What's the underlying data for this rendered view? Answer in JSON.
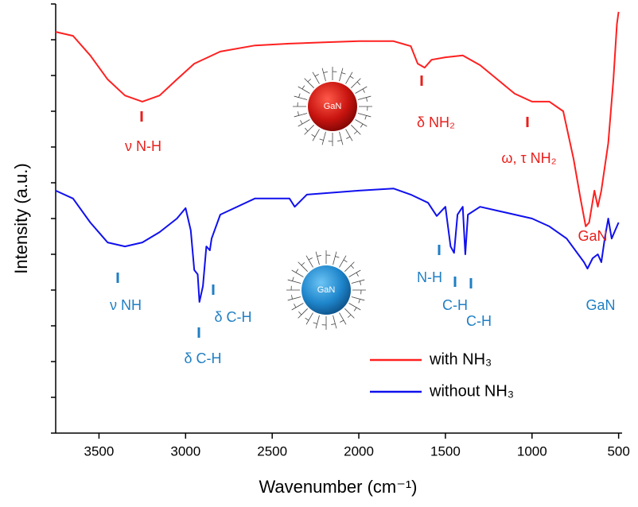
{
  "chart_data": {
    "type": "line",
    "xlabel": "Wavenumber (cm⁻¹)",
    "ylabel": "Intensity (a.u.)",
    "xlim": [
      3750,
      480
    ],
    "xticks": [
      3500,
      3000,
      2500,
      2000,
      1500,
      1000,
      500
    ],
    "ylim": [
      0,
      12
    ],
    "yticks": [
      0,
      1,
      2,
      3,
      4,
      5,
      6,
      7,
      8,
      9,
      10,
      11,
      12
    ],
    "legend": "lower right",
    "series": [
      {
        "name": "with NH₃",
        "color": "#ff2020",
        "x": [
          3750,
          3650,
          3550,
          3450,
          3350,
          3250,
          3150,
          3050,
          2950,
          2800,
          2600,
          2400,
          2200,
          2000,
          1800,
          1700,
          1660,
          1620,
          1580,
          1500,
          1400,
          1300,
          1200,
          1100,
          1000,
          900,
          820,
          760,
          720,
          690,
          670,
          640,
          620,
          600,
          560,
          530,
          510,
          500
        ],
        "values": [
          11.22,
          11.11,
          10.56,
          9.89,
          9.44,
          9.27,
          9.44,
          9.89,
          10.33,
          10.67,
          10.84,
          10.89,
          10.93,
          10.96,
          10.96,
          10.82,
          10.33,
          10.22,
          10.44,
          10.51,
          10.56,
          10.29,
          9.89,
          9.49,
          9.27,
          9.27,
          9.0,
          7.67,
          6.56,
          5.78,
          5.89,
          6.78,
          6.33,
          6.78,
          8.11,
          9.89,
          11.44,
          11.78
        ]
      },
      {
        "name": "without NH₃",
        "color": "#1010ee",
        "x": [
          3750,
          3650,
          3550,
          3450,
          3350,
          3250,
          3150,
          3050,
          3000,
          2970,
          2950,
          2930,
          2920,
          2900,
          2880,
          2860,
          2850,
          2800,
          2600,
          2400,
          2370,
          2300,
          2000,
          1800,
          1700,
          1600,
          1550,
          1500,
          1470,
          1450,
          1430,
          1400,
          1385,
          1370,
          1300,
          1200,
          1000,
          900,
          800,
          700,
          680,
          650,
          620,
          600,
          580,
          560,
          540,
          520,
          500
        ],
        "values": [
          6.78,
          6.56,
          5.89,
          5.33,
          5.22,
          5.33,
          5.62,
          6.0,
          6.29,
          5.67,
          4.56,
          4.44,
          3.67,
          4.11,
          5.22,
          5.11,
          5.44,
          6.11,
          6.56,
          6.56,
          6.33,
          6.67,
          6.78,
          6.84,
          6.67,
          6.44,
          6.07,
          6.33,
          5.22,
          5.04,
          6.11,
          6.33,
          5.0,
          6.11,
          6.33,
          6.22,
          6.0,
          5.78,
          5.44,
          4.78,
          4.6,
          4.89,
          5.0,
          4.78,
          5.44,
          6.0,
          5.44,
          5.67,
          5.89
        ]
      }
    ],
    "annotations": [
      {
        "text": "ν N-H",
        "color": "#e8201c"
      },
      {
        "text": "δ NH₂",
        "color": "#e8201c"
      },
      {
        "text": "ω, τ NH₂",
        "color": "#e8201c"
      },
      {
        "text": "GaN",
        "color": "#e8201c"
      },
      {
        "text": "ν NH",
        "color": "#1f7fc4"
      },
      {
        "text": "δ C-H",
        "color": "#1f7fc4"
      },
      {
        "text": "δ C-H",
        "color": "#1f7fc4"
      },
      {
        "text": "N-H",
        "color": "#1f7fc4"
      },
      {
        "text": "C-H",
        "color": "#1f7fc4"
      },
      {
        "text": "C-H",
        "color": "#1f7fc4"
      },
      {
        "text": "GaN",
        "color": "#1f7fc4"
      }
    ],
    "sphere_labels": [
      "GaN",
      "GaN"
    ]
  }
}
